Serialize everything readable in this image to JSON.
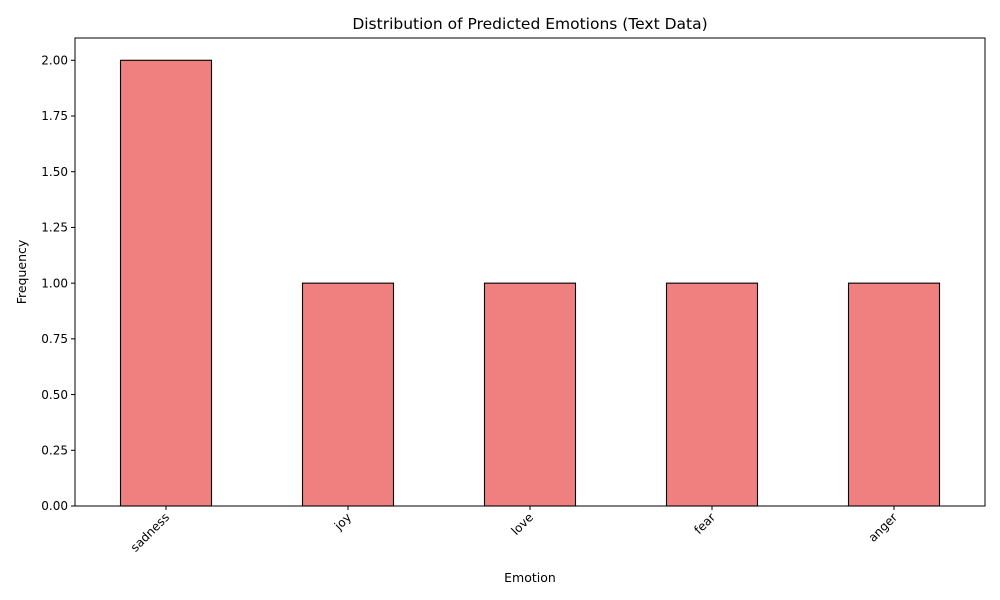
{
  "chart_data": {
    "type": "bar",
    "title": "Distribution of Predicted Emotions (Text Data)",
    "xlabel": "Emotion",
    "ylabel": "Frequency",
    "categories": [
      "sadness",
      "joy",
      "love",
      "fear",
      "anger"
    ],
    "values": [
      2,
      1,
      1,
      1,
      1
    ],
    "ylim": [
      0,
      2.1
    ],
    "yticks": [
      "0.00",
      "0.25",
      "0.50",
      "0.75",
      "1.00",
      "1.25",
      "1.50",
      "1.75",
      "2.00"
    ],
    "xtick_rotation_deg": 45,
    "bar_color": "#f08080",
    "edge_color": "#000000",
    "grid": false,
    "legend": "none"
  }
}
